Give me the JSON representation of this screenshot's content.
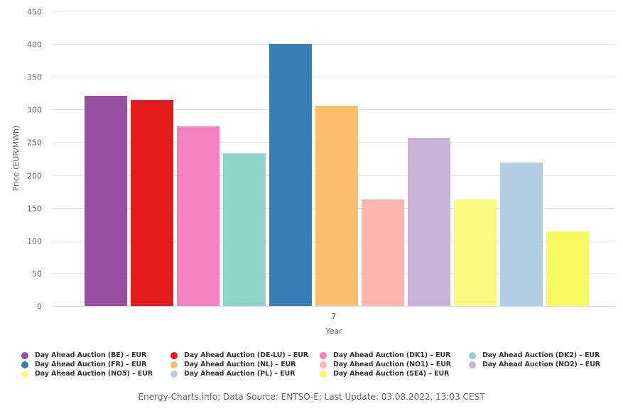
{
  "chart_data": {
    "type": "bar",
    "title": "",
    "xlabel": "Year",
    "ylabel": "Price (EUR/MWh)",
    "categories": [
      "7"
    ],
    "ylim": [
      0,
      450
    ],
    "yticks": [
      0,
      50,
      100,
      150,
      200,
      250,
      300,
      350,
      400,
      450
    ],
    "grid": true,
    "legend_position": "bottom",
    "series": [
      {
        "name": "Day Ahead Auction (BE) – EUR",
        "color": "#984ea3",
        "values": [
          321
        ]
      },
      {
        "name": "Day Ahead Auction (DE-LU) – EUR",
        "color": "#e41a1c",
        "values": [
          314.5
        ]
      },
      {
        "name": "Day Ahead Auction (DK1) – EUR",
        "color": "#f781bf",
        "values": [
          274.3
        ]
      },
      {
        "name": "Day Ahead Auction (DK2) – EUR",
        "color": "#8dd3c7",
        "values": [
          233.1
        ]
      },
      {
        "name": "Day Ahead Auction (FR) – EUR",
        "color": "#377eb8",
        "values": [
          400.1
        ]
      },
      {
        "name": "Day Ahead Auction (NL) – EUR",
        "color": "#fdbf6f",
        "values": [
          305.8
        ]
      },
      {
        "name": "Day Ahead Auction (NO1) – EUR",
        "color": "#fbb4ae",
        "values": [
          162.7
        ]
      },
      {
        "name": "Day Ahead Auction (NO2) – EUR",
        "color": "#cab2d6",
        "values": [
          257
        ]
      },
      {
        "name": "Day Ahead Auction (NO5) – EUR",
        "color": "#f9f97f",
        "values": [
          162.7
        ]
      },
      {
        "name": "Day Ahead Auction (PL) – EUR",
        "color": "#b3cde3",
        "values": [
          219
        ]
      },
      {
        "name": "Day Ahead Auction (SE4) – EUR",
        "color": "#f9f961",
        "values": [
          113.9
        ]
      }
    ]
  },
  "footer": {
    "credit": "Energy-Charts.info; Data Source: ENTSO-E; Last Update: 03.08.2022, 13:03 CEST"
  }
}
